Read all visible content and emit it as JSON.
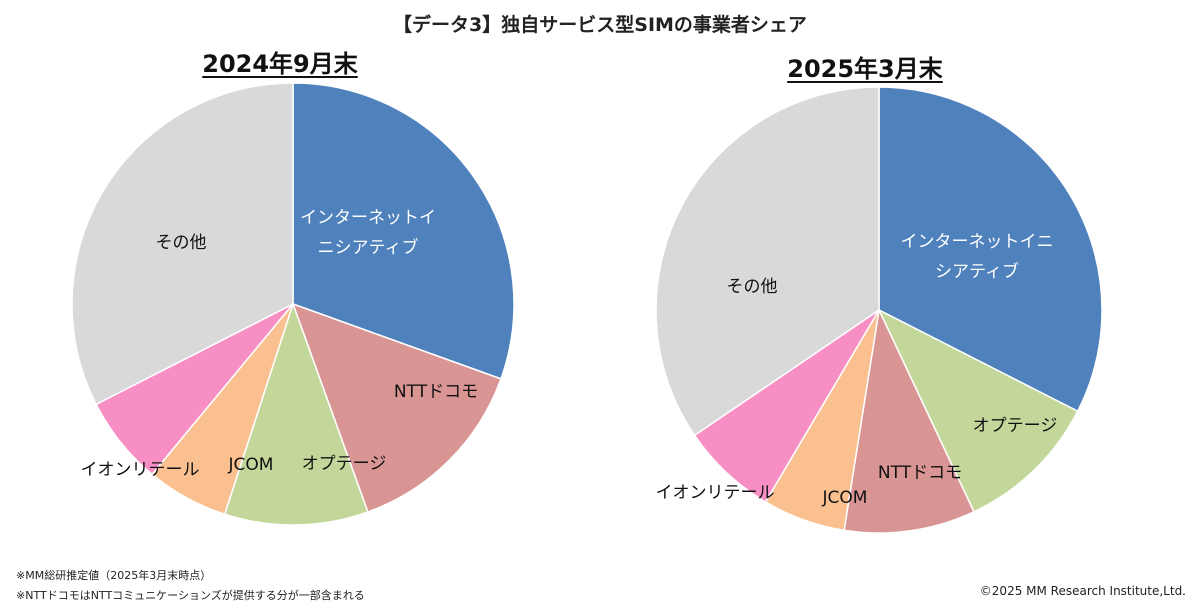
{
  "title": "【データ3】独自サービス型SIMの事業者シェア",
  "notes": [
    "※MM総研推定値（2025年3月末時点）",
    "※NTTドコモはNTTコミュニケーションズが提供する分が一部含まれる"
  ],
  "copyright": "©2025 MM Research Institute,Ltd.",
  "colors": {
    "インターネットイニシアティブ": "#4f81bd",
    "NTTドコモ": "#d99594",
    "オプテージ": "#c4d79b",
    "JCOM": "#fac090",
    "イオンリテール": "#f78fc4",
    "その他": "#d9d9d9"
  },
  "chart_data": [
    {
      "type": "pie",
      "title": "2024年9月末",
      "slices": [
        {
          "name": "インターネットイニシアティブ",
          "label_lines": [
            "インターネットイ",
            "ニシアティブ"
          ],
          "value": 30.5
        },
        {
          "name": "NTTドコモ",
          "label_lines": [
            "NTTドコモ"
          ],
          "value": 14.0
        },
        {
          "name": "オプテージ",
          "label_lines": [
            "オプテージ"
          ],
          "value": 10.5
        },
        {
          "name": "JCOM",
          "label_lines": [
            "JCOM"
          ],
          "value": 6.0
        },
        {
          "name": "イオンリテール",
          "label_lines": [
            "イオンリテール"
          ],
          "value": 6.5
        },
        {
          "name": "その他",
          "label_lines": [
            "その他"
          ],
          "value": 32.5
        }
      ]
    },
    {
      "type": "pie",
      "title": "2025年3月末",
      "slices": [
        {
          "name": "インターネットイニシアティブ",
          "label_lines": [
            "インターネットイニ",
            "シアティブ"
          ],
          "value": 32.5
        },
        {
          "name": "オプテージ",
          "label_lines": [
            "オプテージ"
          ],
          "value": 10.5
        },
        {
          "name": "NTTドコモ",
          "label_lines": [
            "NTTドコモ"
          ],
          "value": 9.5
        },
        {
          "name": "JCOM",
          "label_lines": [
            "JCOM"
          ],
          "value": 6.0
        },
        {
          "name": "イオンリテール",
          "label_lines": [
            "イオンリテール"
          ],
          "value": 7.0
        },
        {
          "name": "その他",
          "label_lines": [
            "その他"
          ],
          "value": 34.5
        }
      ]
    }
  ]
}
